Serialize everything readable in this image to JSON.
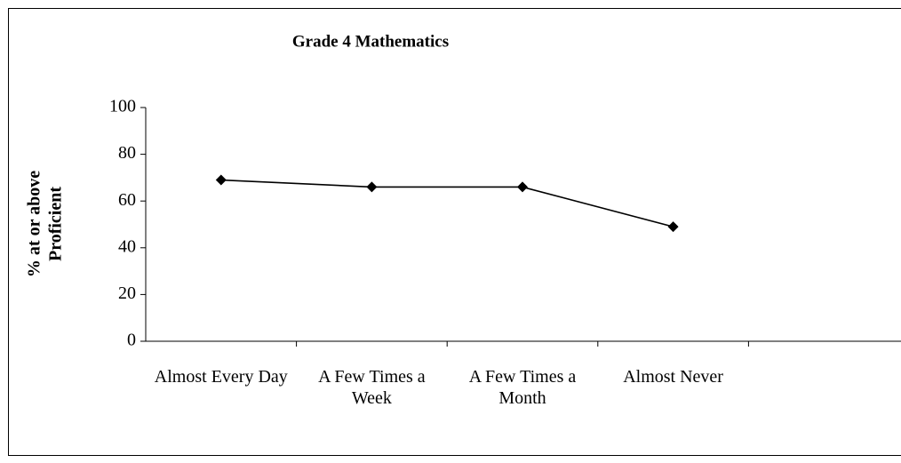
{
  "chart_data": {
    "type": "line",
    "title": "Grade 4 Mathematics",
    "ylabel": [
      "% at or above",
      "Proficient"
    ],
    "categories": [
      "Almost Every Day",
      "A Few Times a Week",
      "A Few Times a Month",
      "Almost Never",
      null
    ],
    "series": [
      {
        "color": "#000000",
        "values": [
          69,
          66,
          66,
          49,
          null
        ]
      }
    ],
    "ylim": [
      0,
      100
    ],
    "yticks": [
      0,
      20,
      40,
      60,
      80,
      100
    ],
    "grid": false
  }
}
